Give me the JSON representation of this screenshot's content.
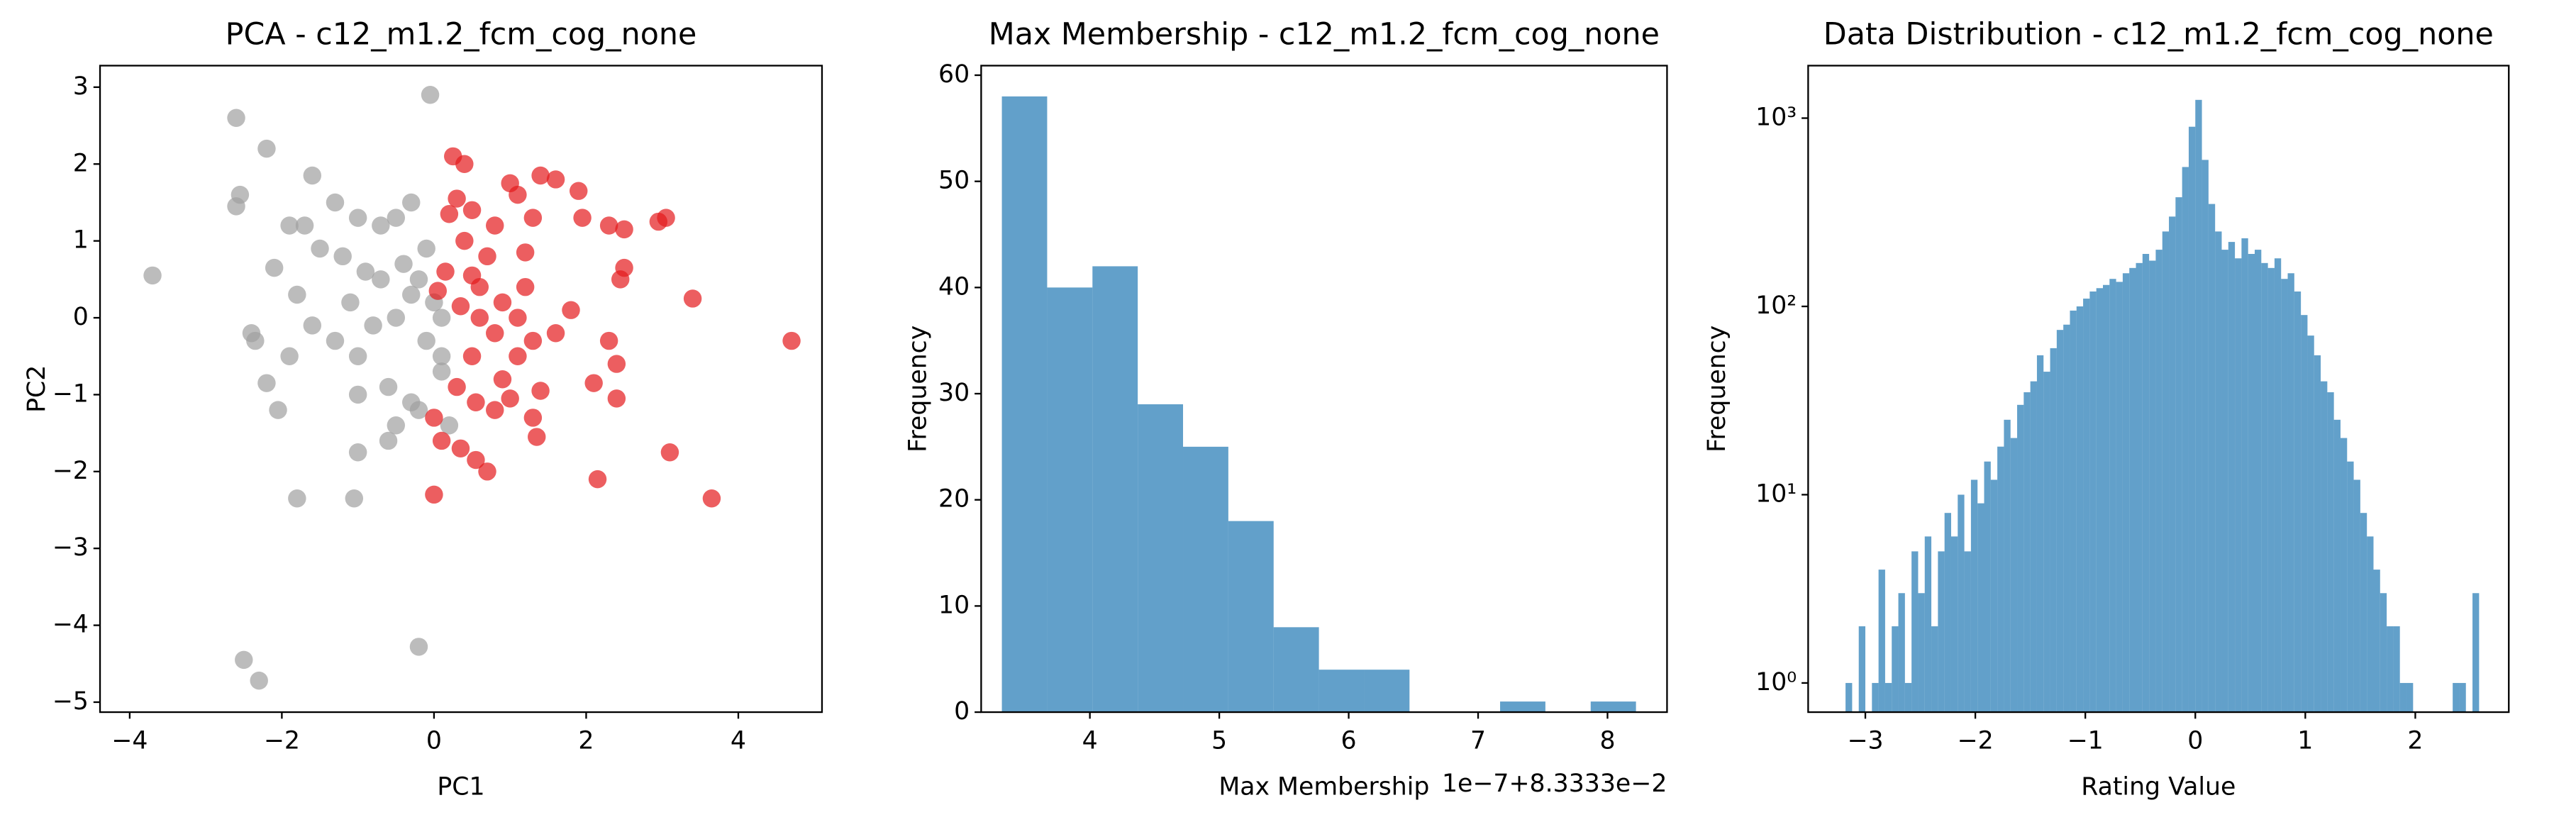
{
  "chart_data": [
    {
      "type": "scatter",
      "title": "PCA - c12_m1.2_fcm_cog_none",
      "x_label": "PC1",
      "y_label": "PC2",
      "xlim": [
        -4.39,
        5.1
      ],
      "ylim": [
        -5.13,
        3.28
      ],
      "xticks": [
        {
          "value": -4,
          "label": "−4"
        },
        {
          "value": -2,
          "label": "−2"
        },
        0,
        2,
        4
      ],
      "yticks": [
        {
          "value": -5,
          "label": "−5"
        },
        {
          "value": -4,
          "label": "−4"
        },
        {
          "value": -3,
          "label": "−3"
        },
        {
          "value": -2,
          "label": "−2"
        },
        {
          "value": -1,
          "label": "−1"
        },
        0,
        1,
        2,
        3
      ],
      "series": [
        {
          "color": "#a0a0a0",
          "x": [
            -3.7,
            -2.6,
            -2.2,
            -2.55,
            -2.6,
            -0.05,
            -2.4,
            -2.35,
            -2.1,
            -1.9,
            -1.7,
            -1.6,
            -1.3,
            -1.8,
            -1.5,
            -1.2,
            -1.0,
            -0.7,
            -0.5,
            -0.3,
            -1.6,
            -1.9,
            -2.2,
            -2.05,
            -1.0,
            -1.3,
            -0.8,
            -0.5,
            -0.3,
            -0.1,
            -0.2,
            0.0,
            -0.1,
            0.1,
            -0.6,
            -0.3,
            -1.0,
            -1.0,
            -0.6,
            -1.8,
            -1.05,
            -0.5,
            -0.2,
            0.1,
            0.2,
            -2.5,
            -2.3,
            -0.2,
            -0.7,
            -1.1,
            -0.9,
            -0.4,
            0.1
          ],
          "values": [
            0.55,
            2.6,
            2.2,
            1.6,
            1.45,
            2.9,
            -0.2,
            -0.3,
            0.65,
            1.2,
            1.2,
            1.85,
            1.5,
            0.3,
            0.9,
            0.8,
            1.3,
            1.2,
            1.3,
            1.5,
            -0.1,
            -0.5,
            -0.85,
            -1.2,
            -0.5,
            -0.3,
            -0.1,
            0.0,
            0.3,
            0.9,
            0.5,
            0.2,
            -0.3,
            -0.5,
            -0.9,
            -1.1,
            -1.0,
            -1.75,
            -1.6,
            -2.35,
            -2.35,
            -1.4,
            -1.2,
            -0.7,
            -1.4,
            -4.45,
            -4.72,
            -4.28,
            0.5,
            0.2,
            0.6,
            0.7,
            0.0
          ]
        },
        {
          "color": "#e41a1c",
          "x": [
            0.25,
            0.4,
            0.3,
            0.5,
            0.2,
            0.8,
            1.0,
            1.1,
            1.4,
            1.6,
            1.9,
            1.95,
            2.3,
            2.5,
            2.95,
            3.05,
            1.3,
            1.2,
            0.7,
            0.5,
            0.15,
            0.05,
            0.35,
            0.6,
            0.9,
            1.1,
            1.3,
            1.6,
            1.8,
            2.45,
            2.5,
            3.4,
            4.7,
            2.3,
            2.4,
            2.1,
            2.4,
            1.4,
            1.1,
            0.8,
            0.5,
            0.3,
            0.55,
            0.8,
            1.0,
            1.3,
            1.35,
            0.35,
            0.55,
            0.7,
            0.0,
            0.1,
            0.0,
            2.15,
            3.1,
            3.65,
            0.6,
            1.2,
            0.9,
            0.4
          ],
          "values": [
            2.1,
            2.0,
            1.55,
            1.4,
            1.35,
            1.2,
            1.75,
            1.6,
            1.85,
            1.8,
            1.65,
            1.3,
            1.2,
            1.15,
            1.25,
            1.3,
            1.3,
            0.85,
            0.8,
            0.55,
            0.6,
            0.35,
            0.15,
            0.4,
            0.2,
            0.0,
            -0.3,
            -0.2,
            0.1,
            0.5,
            0.65,
            0.25,
            -0.3,
            -0.3,
            -0.6,
            -0.85,
            -1.05,
            -0.95,
            -0.5,
            -0.2,
            -0.5,
            -0.9,
            -1.1,
            -1.2,
            -1.05,
            -1.3,
            -1.55,
            -1.7,
            -1.85,
            -2.0,
            -1.3,
            -1.6,
            -2.3,
            -2.1,
            -1.75,
            -2.35,
            0.0,
            0.4,
            -0.8,
            1.0
          ]
        }
      ]
    },
    {
      "type": "histogram",
      "title": "Max Membership - c12_m1.2_fcm_cog_none",
      "x_label": "Max Membership",
      "y_label": "Frequency",
      "annotation": "1e−7+8.3333e−2",
      "color": "#1f77b4",
      "xlim": [
        3.16,
        8.46
      ],
      "ylim": [
        0,
        60.9
      ],
      "xticks": [
        4,
        5,
        6,
        7,
        8
      ],
      "yticks": [
        0,
        10,
        20,
        30,
        40,
        50,
        60
      ],
      "bins": [
        3.32,
        3.67,
        4.02,
        4.37,
        4.72,
        5.07,
        5.42,
        5.77,
        6.12,
        6.47,
        6.82,
        7.17,
        7.52,
        7.87,
        8.22
      ],
      "values": [
        58,
        40,
        42,
        29,
        25,
        18,
        8,
        4,
        4,
        0,
        0,
        1,
        0,
        1
      ]
    },
    {
      "type": "histogram",
      "title": "Data Distribution - c12_m1.2_fcm_cog_none",
      "x_label": "Rating Value",
      "y_label": "Frequency",
      "color": "#1f77b4",
      "yscale": "log",
      "xlim": [
        -3.52,
        2.85
      ],
      "ylim": [
        0.7,
        1900
      ],
      "xticks": [
        {
          "value": -3,
          "label": "−3"
        },
        {
          "value": -2,
          "label": "−2"
        },
        {
          "value": -1,
          "label": "−1"
        },
        0,
        1,
        2
      ],
      "yticks": [
        {
          "value": 1,
          "label": "10⁰"
        },
        {
          "value": 10,
          "label": "10¹"
        },
        {
          "value": 100,
          "label": "10²"
        },
        {
          "value": 1000,
          "label": "10³"
        }
      ],
      "bins": [
        -3.18,
        -3.12,
        -3.06,
        -3.0,
        -2.94,
        -2.88,
        -2.82,
        -2.76,
        -2.7,
        -2.64,
        -2.58,
        -2.52,
        -2.46,
        -2.4,
        -2.34,
        -2.28,
        -2.22,
        -2.16,
        -2.1,
        -2.04,
        -1.98,
        -1.92,
        -1.86,
        -1.8,
        -1.74,
        -1.68,
        -1.62,
        -1.56,
        -1.5,
        -1.44,
        -1.38,
        -1.32,
        -1.26,
        -1.2,
        -1.14,
        -1.08,
        -1.02,
        -0.96,
        -0.9,
        -0.84,
        -0.78,
        -0.72,
        -0.66,
        -0.6,
        -0.54,
        -0.48,
        -0.42,
        -0.36,
        -0.3,
        -0.24,
        -0.18,
        -0.12,
        -0.06,
        0,
        0.06,
        0.12,
        0.18,
        0.24,
        0.3,
        0.36,
        0.42,
        0.48,
        0.54,
        0.6,
        0.66,
        0.72,
        0.78,
        0.84,
        0.9,
        0.96,
        1.02,
        1.08,
        1.14,
        1.2,
        1.26,
        1.32,
        1.38,
        1.44,
        1.5,
        1.56,
        1.62,
        1.68,
        1.74,
        1.8,
        1.86,
        1.92,
        1.98,
        2.04,
        2.1,
        2.16,
        2.22,
        2.28,
        2.34,
        2.4,
        2.46,
        2.52,
        2.58
      ],
      "values": [
        1,
        0,
        2,
        0,
        1,
        4,
        1,
        2,
        3,
        1,
        5,
        3,
        6,
        2,
        5,
        8,
        6,
        10,
        5,
        12,
        9,
        15,
        12,
        18,
        25,
        20,
        30,
        35,
        40,
        55,
        45,
        60,
        75,
        80,
        95,
        100,
        110,
        120,
        125,
        130,
        140,
        135,
        150,
        160,
        170,
        190,
        175,
        200,
        250,
        300,
        380,
        550,
        900,
        1250,
        600,
        350,
        250,
        200,
        220,
        180,
        230,
        190,
        200,
        170,
        160,
        180,
        140,
        150,
        120,
        90,
        70,
        55,
        40,
        35,
        25,
        20,
        15,
        12,
        8,
        6,
        4,
        3,
        2,
        2,
        1,
        1,
        0,
        0,
        0,
        0,
        0,
        0,
        1,
        1,
        0,
        3
      ]
    }
  ]
}
